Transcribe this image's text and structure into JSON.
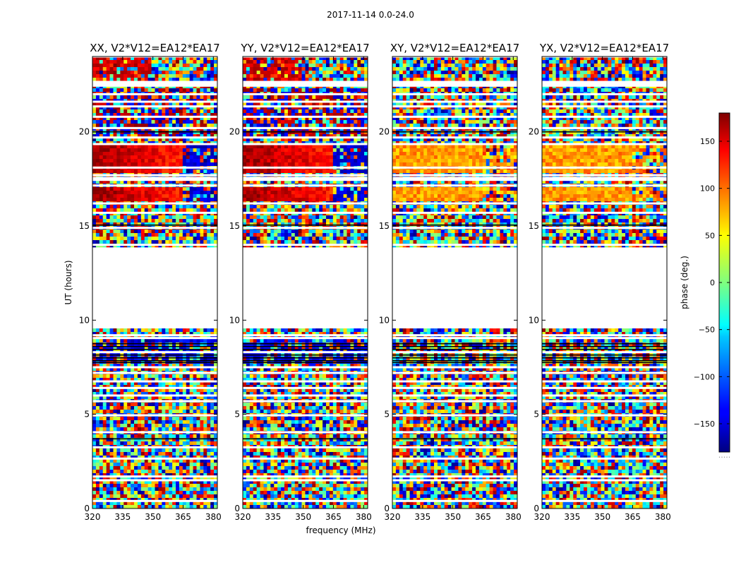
{
  "figure_title": "2017-11-14 0.0-24.0",
  "chart_data": {
    "type": "heatmap",
    "title": "2017-11-14 0.0-24.0",
    "xlabel": "frequency (MHz)",
    "ylabel": "UT (hours)",
    "xlim": [
      320,
      382
    ],
    "ylim": [
      0,
      24
    ],
    "xticks": [
      320,
      335,
      350,
      365,
      380
    ],
    "yticks": [
      0,
      5,
      10,
      15,
      20
    ],
    "colorbar": {
      "label": "phase (deg.)",
      "range": [
        -180,
        180
      ],
      "ticks": [
        150,
        100,
        50,
        0,
        -50,
        -100,
        -150
      ],
      "tick_labels": [
        "150",
        "100",
        "50",
        "0",
        "−50",
        "−100",
        "−150"
      ],
      "colormap": "jet",
      "footer": "....."
    },
    "panels": [
      {
        "title": "XX, V2*V12=EA12*EA17",
        "pol": "XX",
        "ytick_labels": [
          "0",
          "5",
          "10",
          "15",
          "20"
        ]
      },
      {
        "title": "YY, V2*V12=EA12*EA17",
        "pol": "YY",
        "ytick_labels": [
          "0",
          "5",
          "10",
          "15",
          "20"
        ]
      },
      {
        "title": "XY, V2*V12=EA12*EA17",
        "pol": "XY",
        "ytick_labels": [
          "0",
          "5",
          "10",
          "15",
          "20"
        ]
      },
      {
        "title": "YX, V2*V12=EA12*EA17",
        "pol": "YX",
        "ytick_labels": [
          "0",
          "5",
          "10",
          "15",
          "20"
        ]
      }
    ],
    "xtick_labels": [
      "320",
      "335",
      "350",
      "365",
      "380"
    ],
    "gaps_ut_hours": [
      [
        9.6,
        13.9
      ],
      [
        22.6,
        22.3
      ],
      [
        17.4,
        17.6
      ]
    ],
    "coherent_phase_bands": [
      {
        "ut": [
          17.8,
          19.3
        ],
        "freq_break_mhz": 364,
        "XX": {
          "low_freq_deg": 170,
          "high_freq_deg": -150
        },
        "YY": {
          "low_freq_deg": 170,
          "high_freq_deg": -150
        },
        "XY": {
          "deg": 80
        },
        "YX": {
          "deg": 80
        }
      },
      {
        "ut": [
          16.3,
          17.0
        ],
        "freq_break_mhz": 364,
        "XX": {
          "low_freq_deg": 160,
          "high_freq_deg": -150
        },
        "YY": {
          "low_freq_deg": 160,
          "high_freq_deg": -150
        },
        "XY": {
          "deg": 90
        },
        "YX": {
          "deg": 90
        }
      }
    ]
  }
}
